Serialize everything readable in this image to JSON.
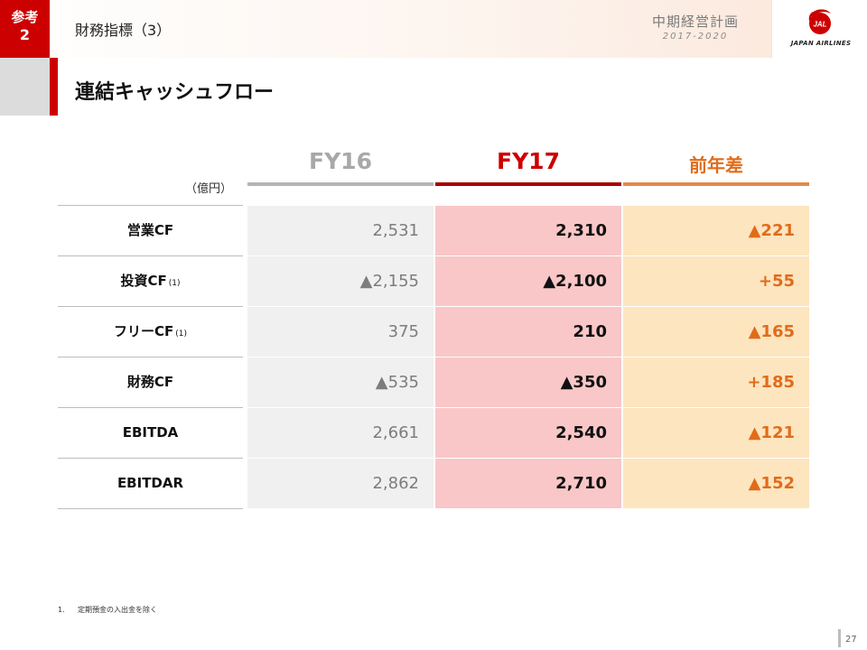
{
  "header": {
    "badge_line1": "参考",
    "badge_line2": "2",
    "title": "財務指標（3）",
    "plan_title": "中期経営計画",
    "plan_years": "2017-2020",
    "logo_text": "JAPAN AIRLINES",
    "logo_mark_text": "JAL"
  },
  "slide_title": "連結キャッシュフロー",
  "table": {
    "unit": "（億円）",
    "columns": [
      {
        "label": "FY16",
        "color": "#a8a8a8"
      },
      {
        "label": "FY17",
        "color": "#cc0000"
      },
      {
        "label": "前年差",
        "color": "#e06c1a"
      }
    ],
    "rows": [
      {
        "label": "営業CF",
        "footnote": "",
        "fy16": "2,531",
        "fy17": "2,310",
        "diff": "▲221"
      },
      {
        "label": "投資CF",
        "footnote": "(1)",
        "fy16": "▲2,155",
        "fy17": "▲2,100",
        "diff": "+55"
      },
      {
        "label": "フリーCF",
        "footnote": "(1)",
        "fy16": "375",
        "fy17": "210",
        "diff": "▲165"
      },
      {
        "label": "財務CF",
        "footnote": "",
        "fy16": "▲535",
        "fy17": "▲350",
        "diff": "+185"
      },
      {
        "label": "EBITDA",
        "footnote": "",
        "fy16": "2,661",
        "fy17": "2,540",
        "diff": "▲121"
      },
      {
        "label": "EBITDAR",
        "footnote": "",
        "fy16": "2,862",
        "fy17": "2,710",
        "diff": "▲152"
      }
    ]
  },
  "footnote": {
    "num": "1.",
    "text": "定期預金の入出金を除く"
  },
  "page_number": "27",
  "colors": {
    "accent_red": "#cc0000",
    "fy16_bg": "#f0f0f0",
    "fy17_bg": "#f9c7c7",
    "diff_bg": "#fde5c0",
    "diff_text": "#e06c1a"
  }
}
